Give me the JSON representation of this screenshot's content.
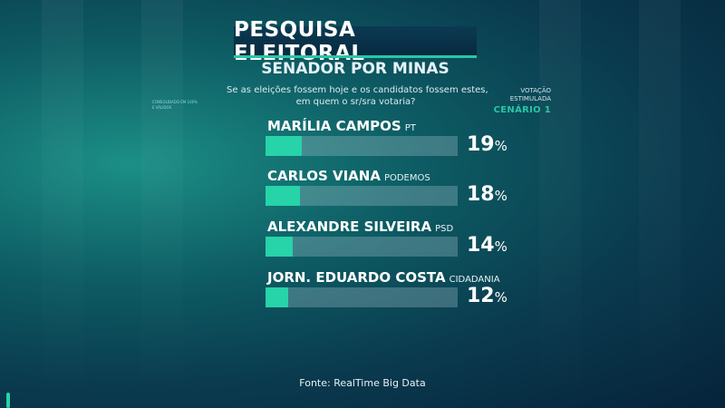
{
  "header": {
    "title": "PESQUISA ELEITORAL",
    "subtitle": "SENADOR POR MINAS",
    "question_line1": "Se as eleições fossem hoje e os candidatos fossem estes,",
    "question_line2": "em quem o sr/sra votaria?"
  },
  "side_note_left": [
    "CONSOLIDADO EM 100%",
    "E VÁLIDOS"
  ],
  "side_note_right": [
    "VOTAÇÃO",
    "ESTIMULADA"
  ],
  "scenario": "CENÁRIO 1",
  "source": "Fonte: RealTime Big Data",
  "percent_symbol": "%",
  "colors": {
    "accent": "#27d3a8",
    "track": "#9bb7c3",
    "background": "#0a3a4e"
  },
  "chart_data": {
    "type": "bar",
    "orientation": "horizontal",
    "categories": [
      "MARÍLIA CAMPOS",
      "CARLOS VIANA",
      "ALEXANDRE SILVEIRA",
      "JORN. EDUARDO COSTA"
    ],
    "parties": [
      "PT",
      "PODEMOS",
      "PSD",
      "CIDADANIA"
    ],
    "values": [
      19,
      18,
      14,
      12
    ],
    "xlim": [
      0,
      100
    ],
    "grid": false,
    "legend": "none"
  }
}
